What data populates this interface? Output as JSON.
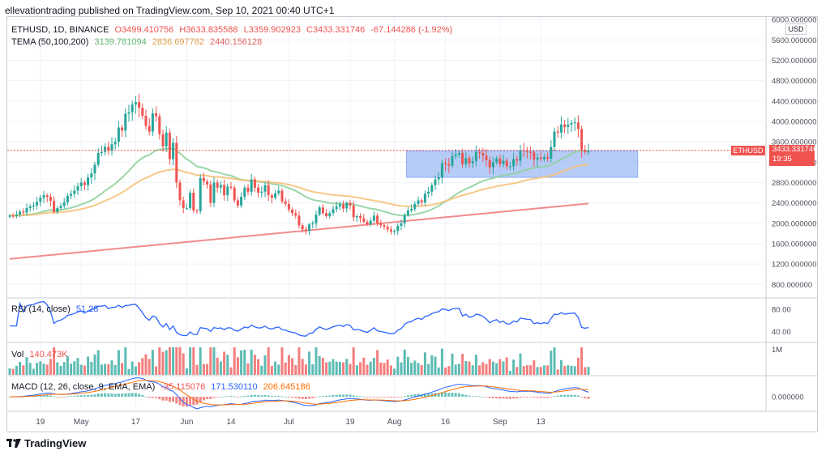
{
  "header": {
    "text": "ellevationtrading published on TradingView.com, Sep 10, 2021 00:40 UTC+1"
  },
  "legend": {
    "symbol": "ETHUSD, 1D, BINANCE",
    "open": "O3499.410756",
    "high": "H3633.835588",
    "low": "L3359.902923",
    "close": "C3433.331746",
    "change": "-67.144286 (-1.92%)",
    "tema_label": "TEMA (50,100,200)",
    "tema1": "3139.781094",
    "tema2": "2836.697782",
    "tema3": "2440.156128"
  },
  "rsi": {
    "label": "RSI (14, close)",
    "value": "51.28"
  },
  "vol": {
    "label": "Vol",
    "value": "140.473K"
  },
  "macd": {
    "label": "MACD (12, 26, close, 9, EMA, EMA)",
    "v1": "-35.115076",
    "v2": "171.530110",
    "v3": "206.645186"
  },
  "badges": {
    "symbol": "ETHUSD",
    "last_price": "3433.331746",
    "countdown": "19:35",
    "currency": "USD"
  },
  "footer": {
    "brand": "TradingView"
  },
  "colors": {
    "up": "#26a69a",
    "down": "#ef5350",
    "tema1": "#8fd19e",
    "tema2": "#f6c27a",
    "tema3": "#f08080",
    "rsi": "#2962ff",
    "zone": "#7aa3ef"
  },
  "chart_data": [
    {
      "type": "candlestick",
      "title": "ETHUSD, 1D, BINANCE",
      "price_ticks": [
        800,
        1200,
        1600,
        2000,
        2400,
        2800,
        3200,
        3600,
        4000,
        4400,
        4800,
        5200,
        5600,
        6000
      ],
      "price_tick_labels": [
        "800.000000",
        "1200.000000",
        "1600.000000",
        "2000.000000",
        "2400.000000",
        "2800.000000",
        "3200.000000",
        "3600.000000",
        "4000.000000",
        "4400.000000",
        "4800.000000",
        "5200.000000",
        "5600.000000",
        "6000.000000"
      ],
      "ylim": [
        550,
        6050
      ],
      "x_labels": [
        "19",
        "May",
        "17",
        "Jun",
        "14",
        "Jul",
        "19",
        "Aug",
        "16",
        "Sep",
        "13"
      ],
      "x_label_dates": [
        "2021-04-19",
        "2021-05-01",
        "2021-05-17",
        "2021-06-01",
        "2021-06-14",
        "2021-07-01",
        "2021-07-19",
        "2021-08-01",
        "2021-08-16",
        "2021-09-01",
        "2021-09-13"
      ],
      "start_date": "2021-04-10",
      "closes": [
        2150,
        2140,
        2170,
        2230,
        2210,
        2300,
        2330,
        2350,
        2420,
        2500,
        2550,
        2520,
        2440,
        2220,
        2300,
        2340,
        2410,
        2540,
        2580,
        2640,
        2730,
        2800,
        2750,
        2900,
        2980,
        3150,
        3380,
        3400,
        3500,
        3420,
        3550,
        3600,
        3880,
        3820,
        4150,
        4180,
        4330,
        4380,
        4270,
        4110,
        3910,
        3800,
        4160,
        4100,
        3750,
        3510,
        3780,
        3260,
        3580,
        2800,
        2450,
        2300,
        2300,
        2600,
        2250,
        2240,
        2890,
        2820,
        2760,
        2400,
        2800,
        2700,
        2750,
        2550,
        2720,
        2700,
        2450,
        2350,
        2520,
        2700,
        2620,
        2860,
        2700,
        2600,
        2620,
        2750,
        2550,
        2500,
        2590,
        2640,
        2430,
        2380,
        2270,
        2200,
        2150,
        1960,
        1880,
        1850,
        1980,
        2000,
        2170,
        2310,
        2200,
        2140,
        2200,
        2280,
        2330,
        2370,
        2290,
        2400,
        2350,
        2120,
        2140,
        2100,
        2030,
        1980,
        2050,
        2150,
        2000,
        1960,
        1930,
        1880,
        1840,
        1850,
        1950,
        2000,
        2160,
        2250,
        2280,
        2380,
        2450,
        2410,
        2580,
        2620,
        2750,
        2860,
        2900,
        3180,
        3160,
        3130,
        3320,
        3350,
        3380,
        3160,
        3280,
        3180,
        3220,
        3400,
        3380,
        3330,
        3240,
        3100,
        3200,
        3270,
        3160,
        3230,
        3120,
        3120,
        3260,
        3230,
        3440,
        3420,
        3400,
        3390,
        3250,
        3290,
        3260,
        3300,
        3270,
        3500,
        3800,
        3780,
        3940,
        3890,
        3940,
        3970,
        3980,
        3850,
        3440,
        3400,
        3433
      ],
      "rsi_ylim": [
        22,
        100
      ],
      "rsi_ticks": [
        40,
        80
      ],
      "rsi_tick_labels": [
        "40.00",
        "80.00"
      ],
      "vol_tick_labels": [
        "1M"
      ],
      "macd_tick_labels": [
        "0.000000"
      ],
      "zone": {
        "start_index": 117,
        "end_index": 184,
        "low": 2900,
        "high": 3420
      }
    }
  ]
}
